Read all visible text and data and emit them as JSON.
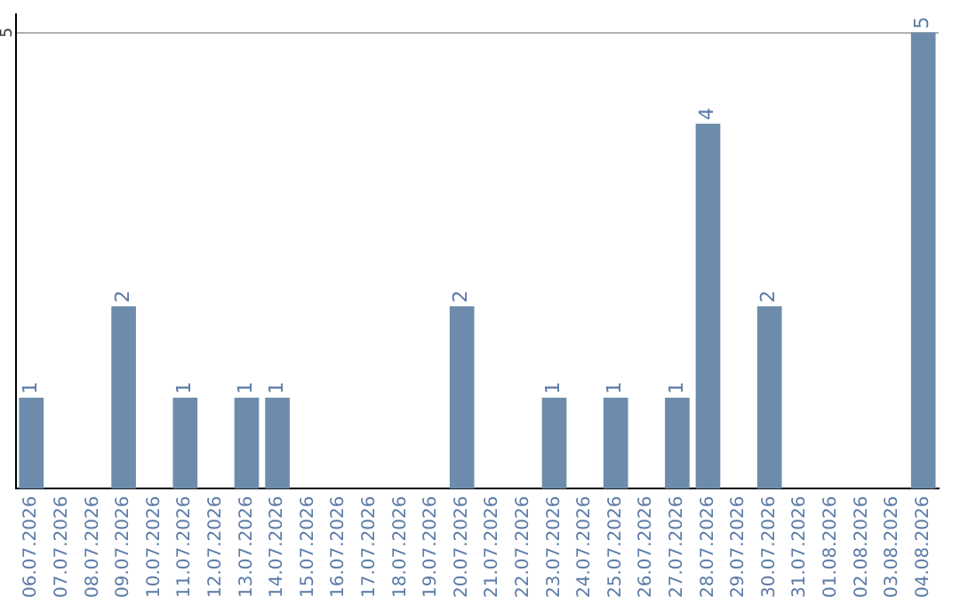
{
  "chart_data": {
    "type": "bar",
    "categories": [
      "06.07.2026",
      "07.07.2026",
      "08.07.2026",
      "09.07.2026",
      "10.07.2026",
      "11.07.2026",
      "12.07.2026",
      "13.07.2026",
      "14.07.2026",
      "15.07.2026",
      "16.07.2026",
      "17.07.2026",
      "18.07.2026",
      "19.07.2026",
      "20.07.2026",
      "21.07.2026",
      "22.07.2026",
      "23.07.2026",
      "24.07.2026",
      "25.07.2026",
      "26.07.2026",
      "27.07.2026",
      "28.07.2026",
      "29.07.2026",
      "30.07.2026",
      "31.07.2026",
      "01.08.2026",
      "02.08.2026",
      "03.08.2026",
      "04.08.2026"
    ],
    "values": [
      1,
      0,
      0,
      2,
      0,
      1,
      0,
      1,
      1,
      0,
      0,
      0,
      0,
      0,
      2,
      0,
      0,
      1,
      0,
      1,
      0,
      1,
      4,
      0,
      2,
      0,
      0,
      0,
      0,
      5
    ],
    "value_labels": [
      "1",
      null,
      null,
      "2",
      null,
      "1",
      null,
      "1",
      "1",
      null,
      null,
      null,
      null,
      null,
      "2",
      null,
      null,
      "1",
      null,
      "1",
      null,
      "1",
      "4",
      null,
      "2",
      null,
      null,
      null,
      null,
      "5"
    ],
    "color": "#6d8cab",
    "ylim": [
      0,
      5.2
    ],
    "yticks": [
      5
    ],
    "grid": "y",
    "legend": false
  }
}
